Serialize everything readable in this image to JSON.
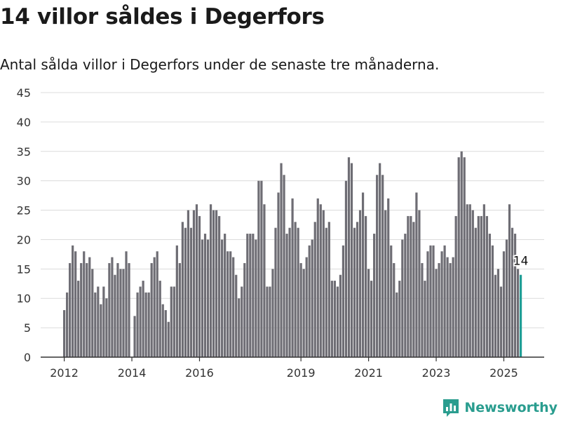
{
  "header": {
    "title": "14 villor såldes i Degerfors",
    "subtitle": "Antal sålda villor i Degerfors under de senaste tre månaderna."
  },
  "brand": {
    "name": "Newsworthy",
    "icon": "bar-chart-logo-icon",
    "color": "#2a9d8f"
  },
  "colors": {
    "bar": "#6e6d74",
    "highlight": "#1f9e96",
    "grid": "#dcdcdc",
    "axis": "#333333"
  },
  "chart_data": {
    "type": "bar",
    "title": "14 villor såldes i Degerfors",
    "subtitle": "Antal sålda villor i Degerfors under de senaste tre månaderna.",
    "xlabel": "",
    "ylabel": "",
    "ylim": [
      0,
      45
    ],
    "yticks": [
      0,
      5,
      10,
      15,
      20,
      25,
      30,
      35,
      40,
      45
    ],
    "xticks": [
      {
        "label": "2012",
        "date": "2012-01"
      },
      {
        "label": "2014",
        "date": "2014-01"
      },
      {
        "label": "2016",
        "date": "2016-01"
      },
      {
        "label": "2019",
        "date": "2019-01"
      },
      {
        "label": "2021",
        "date": "2021-01"
      },
      {
        "label": "2023",
        "date": "2023-01"
      },
      {
        "label": "2025",
        "date": "2025-01"
      }
    ],
    "grid": true,
    "start_month": "2012-01",
    "unit": "month",
    "values": [
      8,
      11,
      16,
      19,
      18,
      13,
      16,
      18,
      16,
      17,
      15,
      11,
      12,
      9,
      12,
      10,
      16,
      17,
      14,
      16,
      15,
      15,
      18,
      16,
      null,
      7,
      11,
      12,
      13,
      11,
      11,
      16,
      17,
      18,
      13,
      9,
      8,
      6,
      12,
      12,
      19,
      16,
      23,
      22,
      25,
      22,
      25,
      26,
      24,
      20,
      21,
      20,
      26,
      25,
      25,
      24,
      20,
      21,
      18,
      18,
      17,
      14,
      10,
      12,
      16,
      21,
      21,
      21,
      20,
      30,
      30,
      26,
      12,
      12,
      15,
      22,
      28,
      33,
      31,
      21,
      22,
      27,
      23,
      22,
      16,
      15,
      17,
      19,
      20,
      23,
      27,
      26,
      25,
      22,
      23,
      13,
      13,
      12,
      14,
      19,
      30,
      34,
      33,
      22,
      23,
      25,
      28,
      24,
      15,
      13,
      21,
      31,
      33,
      31,
      25,
      27,
      19,
      16,
      11,
      13,
      20,
      21,
      24,
      24,
      23,
      28,
      25,
      16,
      13,
      18,
      19,
      19,
      15,
      16,
      18,
      19,
      17,
      16,
      17,
      24,
      34,
      35,
      34,
      26,
      26,
      25,
      22,
      24,
      24,
      26,
      24,
      21,
      19,
      14,
      15,
      12,
      18,
      20,
      26,
      22,
      21,
      15,
      14
    ],
    "highlight": {
      "label": "14",
      "value": 14,
      "date": "2025-07"
    }
  }
}
